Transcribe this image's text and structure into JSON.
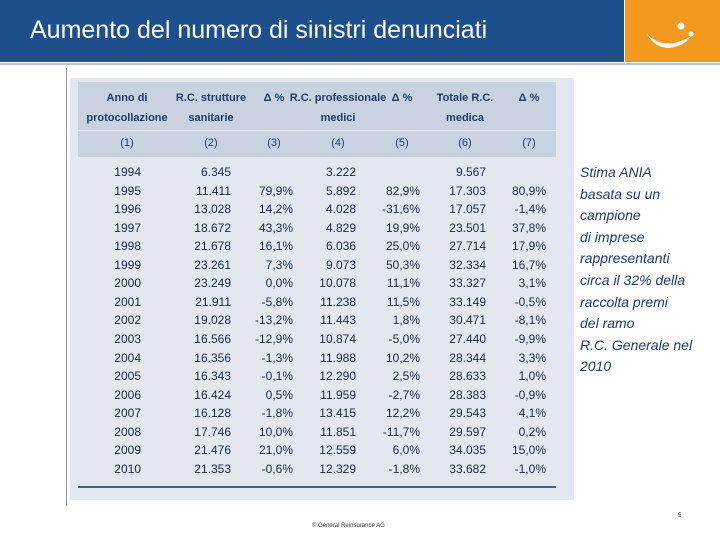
{
  "header": {
    "title": "Aumento del numero di sinistri denunciati"
  },
  "table": {
    "columns": [
      [
        "Anno di",
        "protocollazione"
      ],
      [
        "R.C. strutture",
        "sanitarie"
      ],
      [
        "Δ %"
      ],
      [
        "R.C. professionale",
        "medici"
      ],
      [
        "Δ %"
      ],
      [
        "Totale R.C.",
        "medica"
      ],
      [
        "Δ %"
      ]
    ],
    "column_numbers": [
      "(1)",
      "(2)",
      "(3)",
      "(4)",
      "(5)",
      "(6)",
      "(7)"
    ],
    "rows": [
      [
        "1994",
        "6.345",
        null,
        "3.222",
        null,
        "9.567",
        null
      ],
      [
        "1995",
        "11.411",
        "79,9%",
        "5.892",
        "82,9%",
        "17.303",
        "80,9%"
      ],
      [
        "1996",
        "13.028",
        "14,2%",
        "4.028",
        "-31,6%",
        "17.057",
        "-1,4%"
      ],
      [
        "1997",
        "18.672",
        "43,3%",
        "4.829",
        "19,9%",
        "23.501",
        "37,8%"
      ],
      [
        "1998",
        "21.678",
        "16,1%",
        "6.036",
        "25,0%",
        "27.714",
        "17,9%"
      ],
      [
        "1999",
        "23.261",
        "7,3%",
        "9.073",
        "50,3%",
        "32.334",
        "16,7%"
      ],
      [
        "2000",
        "23.249",
        "0,0%",
        "10.078",
        "11,1%",
        "33.327",
        "3,1%"
      ],
      [
        "2001",
        "21.911",
        "-5,8%",
        "11.238",
        "11,5%",
        "33.149",
        "-0,5%"
      ],
      [
        "2002",
        "19.028",
        "-13,2%",
        "11.443",
        "1,8%",
        "30.471",
        "-8,1%"
      ],
      [
        "2003",
        "16.566",
        "-12,9%",
        "10.874",
        "-5,0%",
        "27.440",
        "-9,9%"
      ],
      [
        "2004",
        "16.356",
        "-1,3%",
        "11.988",
        "10,2%",
        "28.344",
        "3,3%"
      ],
      [
        "2005",
        "16.343",
        "-0,1%",
        "12.290",
        "2,5%",
        "28.633",
        "1,0%"
      ],
      [
        "2006",
        "16.424",
        "0,5%",
        "11.959",
        "-2,7%",
        "28.383",
        "-0,9%"
      ],
      [
        "2007",
        "16.128",
        "-1,8%",
        "13.415",
        "12,2%",
        "29.543",
        "4,1%"
      ],
      [
        "2008",
        "17.746",
        "10,0%",
        "11.851",
        "-11,7%",
        "29.597",
        "0,2%"
      ],
      [
        "2009",
        "21.476",
        "21,0%",
        "12.559",
        "6,0%",
        "34.035",
        "15,0%"
      ],
      [
        "2010",
        "21.353",
        "-0,6%",
        "12.329",
        "-1,8%",
        "33.682",
        "-1,0%"
      ]
    ]
  },
  "note": [
    "Stima ANIA",
    "basata su un",
    "campione",
    "di imprese",
    "rappresentanti",
    "circa il 32% della",
    "raccolta premi",
    "del ramo",
    "R.C. Generale nel",
    "2010"
  ],
  "footer": {
    "copyright": "© General Reinsurance AG",
    "page_number": "5"
  }
}
